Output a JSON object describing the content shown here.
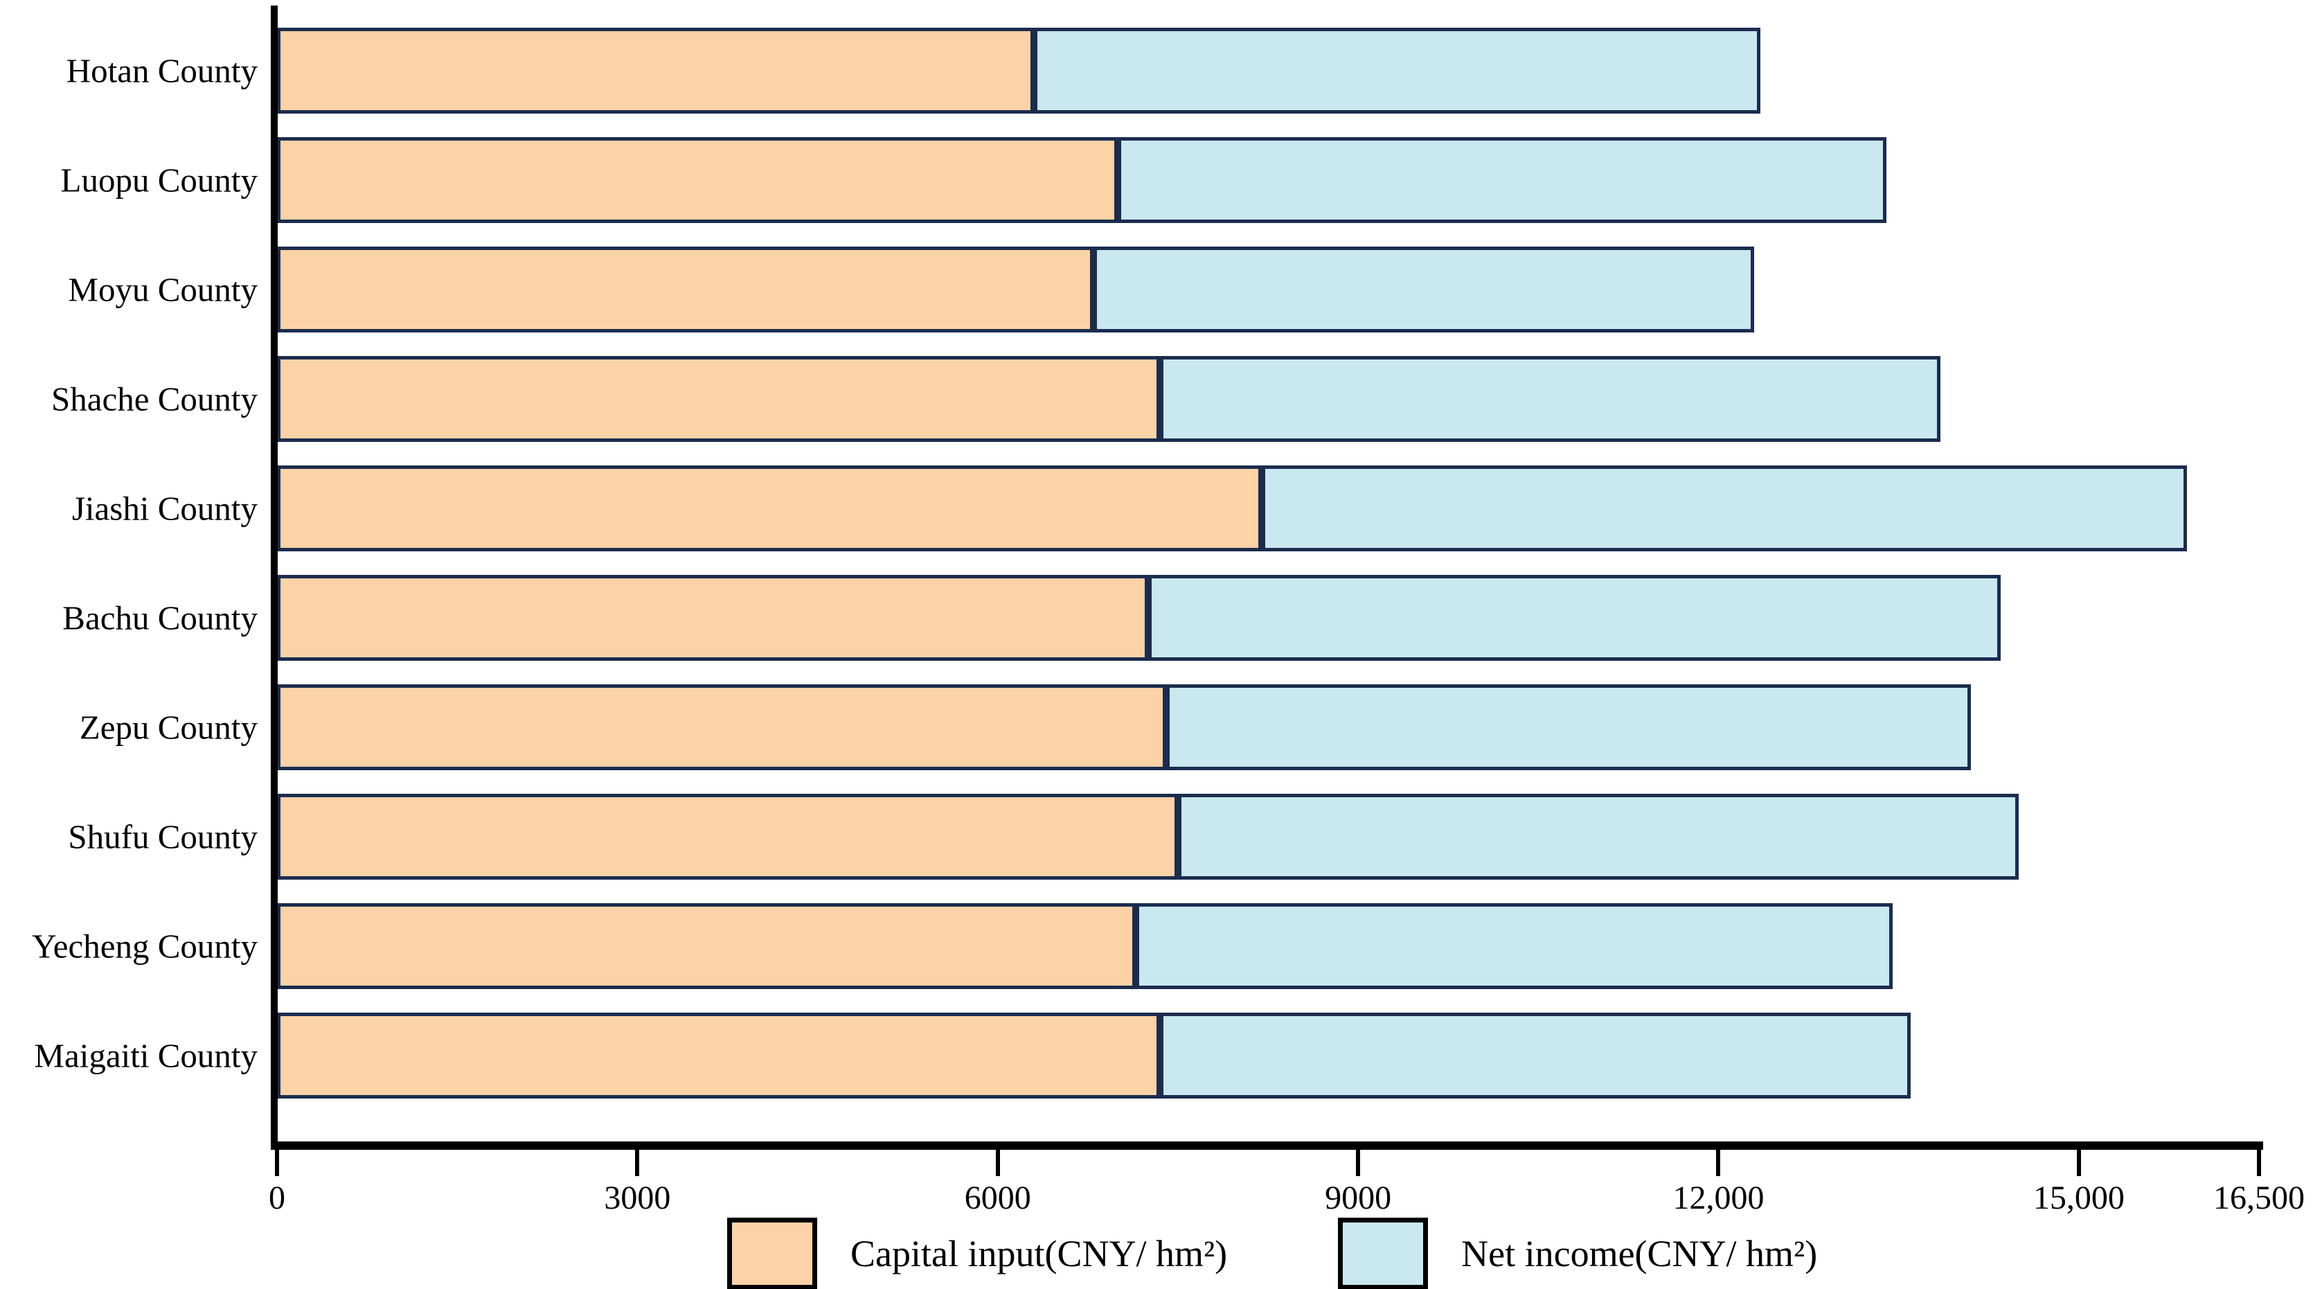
{
  "chart_data": {
    "type": "bar",
    "orientation": "horizontal",
    "stacked": true,
    "title": "",
    "xlabel": "",
    "ylabel": "",
    "xlim": [
      0,
      16500
    ],
    "grid": false,
    "legend_position": "bottom",
    "categories": [
      "Hotan County",
      "Luopu County",
      "Moyu County",
      "Shache County",
      "Jiashi County",
      "Bachu County",
      "Zepu County",
      "Shufu County",
      "Yecheng County",
      "Maigaiti County"
    ],
    "series": [
      {
        "name": "Capital input(CNY/ hm²)",
        "color": "#FCD2A7",
        "values": [
          6300,
          7000,
          6800,
          7350,
          8200,
          7250,
          7400,
          7500,
          7150,
          7350
        ]
      },
      {
        "name": "Net income(CNY/ hm²)",
        "color": "#C9E8F0",
        "values": [
          6050,
          6400,
          5500,
          6500,
          7700,
          7100,
          6700,
          7000,
          6300,
          6250
        ]
      }
    ],
    "totals": [
      12350,
      13400,
      12300,
      13850,
      15900,
      14350,
      14100,
      14500,
      13450,
      13600
    ],
    "x_tick_values": [
      0,
      3000,
      6000,
      9000,
      12000,
      15000,
      16500
    ],
    "x_tick_labels": [
      "0",
      "3000",
      "6000",
      "9000",
      "12,000",
      "15,000",
      "16,500"
    ],
    "colors": {
      "bar_border": "#1B2C4E",
      "axis": "#000000",
      "legend_swatch_border": "#000000",
      "background": "#FFFFFF",
      "text": "#000000"
    }
  }
}
